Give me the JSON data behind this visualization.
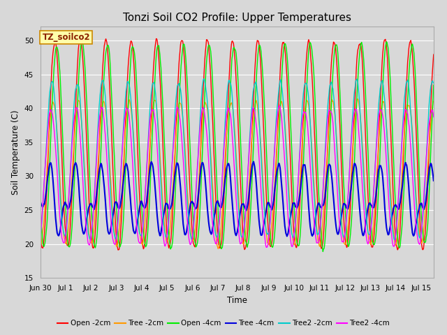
{
  "title": "Tonzi Soil CO2 Profile: Upper Temperatures",
  "ylabel": "Soil Temperature (C)",
  "xlabel": "Time",
  "watermark_text": "TZ_soilco2",
  "ylim": [
    15,
    52
  ],
  "yticks": [
    15,
    20,
    25,
    30,
    35,
    40,
    45,
    50
  ],
  "background_color": "#d8d8d8",
  "plot_bg_color": "#d8d8d8",
  "grid_color": "#ffffff",
  "series": [
    {
      "label": "Open -2cm",
      "color": "#ff0000",
      "lw": 1.0
    },
    {
      "label": "Tree -2cm",
      "color": "#ff9900",
      "lw": 1.0
    },
    {
      "label": "Open -4cm",
      "color": "#00ee00",
      "lw": 1.0
    },
    {
      "label": "Tree -4cm",
      "color": "#0000dd",
      "lw": 1.5
    },
    {
      "label": "Tree2 -2cm",
      "color": "#00cccc",
      "lw": 1.0
    },
    {
      "label": "Tree2 -4cm",
      "color": "#ff00ff",
      "lw": 1.0
    }
  ],
  "xtick_labels": [
    "Jun 30",
    "Jul 1",
    "Jul 2",
    "Jul 3",
    "Jul 4",
    "Jul 5",
    "Jul 6",
    "Jul 7",
    "Jul 8",
    "Jul 9",
    "Jul 10",
    "Jul 11",
    "Jul 12",
    "Jul 13",
    "Jul 14",
    "Jul 15"
  ],
  "n_days": 15.5,
  "samples_per_day": 48
}
